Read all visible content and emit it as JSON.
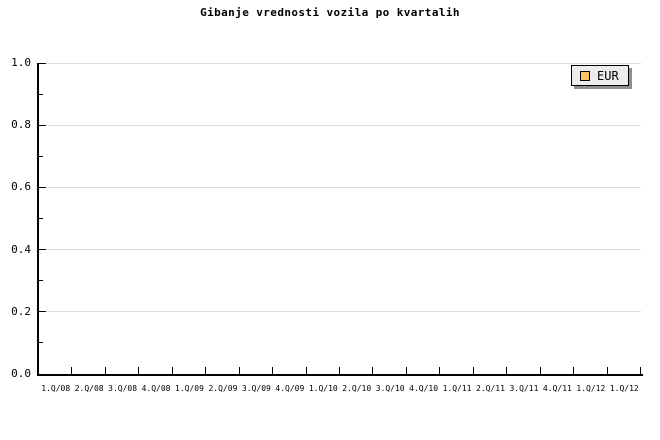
{
  "chart": {
    "title": "Gibanje vrednosti vozila po kvartalih",
    "legend": [
      {
        "label": "EUR",
        "swatch_color": "#FBC45E"
      }
    ]
  },
  "chart_data": {
    "type": "line",
    "title": "Gibanje vrednosti vozila po kvartalih",
    "categories": [
      "1.Q/08",
      "2.Q/08",
      "3.Q/08",
      "4.Q/08",
      "1.Q/09",
      "2.Q/09",
      "3.Q/09",
      "4.Q/09",
      "1.Q/10",
      "2.Q/10",
      "3.Q/10",
      "4.Q/10",
      "1.Q/11",
      "2.Q/11",
      "3.Q/11",
      "4.Q/11",
      "1.Q/12",
      "1.Q/12"
    ],
    "series": [
      {
        "name": "EUR",
        "values": []
      }
    ],
    "xlabel": "",
    "ylabel": "",
    "ylim": [
      0.0,
      1.0
    ],
    "yticks": [
      0.0,
      0.2,
      0.4,
      0.6,
      0.8,
      1.0
    ],
    "ytick_labels": [
      "0.0",
      "0.2",
      "0.4",
      "0.6",
      "0.8",
      "1.0"
    ],
    "y_minor_tick_step": 0.1,
    "grid": "horizontal-only",
    "legend_position": "top-right"
  },
  "colors": {
    "background": "#FFFFFF",
    "axis": "#000000",
    "gridline": "#DCDCDC",
    "text": "#000000",
    "legend_background": "#EDEDED",
    "legend_border": "#000000",
    "legend_shadow": "#8F8F8F",
    "series_eur_swatch": "#FBC45E"
  }
}
